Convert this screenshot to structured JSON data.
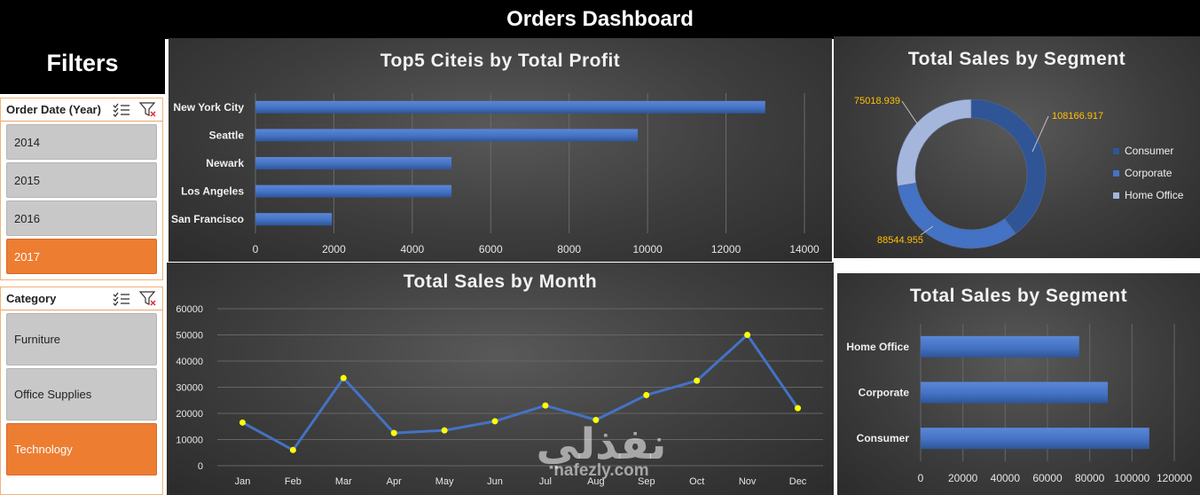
{
  "header": {
    "title": "Orders Dashboard"
  },
  "filters": {
    "title": "Filters",
    "year_slicer": {
      "label": "Order Date (Year)",
      "items": [
        {
          "label": "2014",
          "selected": false
        },
        {
          "label": "2015",
          "selected": false
        },
        {
          "label": "2016",
          "selected": false
        },
        {
          "label": "2017",
          "selected": true
        }
      ]
    },
    "category_slicer": {
      "label": "Category",
      "items": [
        {
          "label": "Furniture",
          "selected": false
        },
        {
          "label": "Office Supplies",
          "selected": false
        },
        {
          "label": "Technology",
          "selected": true
        }
      ]
    }
  },
  "watermark": {
    "arabic": "نفذلي",
    "latin": "nafezly.com"
  },
  "colors": {
    "bar": "#4472c4",
    "consumer": "#2f5597",
    "corporate": "#4472c4",
    "home_office": "#a5b6dd",
    "marker": "#ffff00",
    "selected": "#ed7d31",
    "data_label": "#ffc000"
  },
  "chart_data": [
    {
      "id": "top5",
      "type": "bar",
      "title": "Top5 Citeis by Total Profit",
      "categories": [
        "New York City",
        "Seattle",
        "Newark",
        "Los Angeles",
        "San Francisco"
      ],
      "values": [
        13000,
        9750,
        5000,
        5000,
        1950
      ],
      "xlim": [
        0,
        14000
      ],
      "ticks": [
        "0",
        "2000",
        "4000",
        "6000",
        "8000",
        "10000",
        "12000",
        "14000"
      ],
      "grid": true
    },
    {
      "id": "donut",
      "type": "pie",
      "title": "Total Sales by Segment",
      "categories": [
        "Consumer",
        "Corporate",
        "Home Office"
      ],
      "values": [
        108166.917,
        88544.955,
        75018.939
      ],
      "labels": [
        "108166.917",
        "88544.955",
        "75018.939"
      ],
      "legend": "right"
    },
    {
      "id": "monthly",
      "type": "line",
      "title": "Total Sales by Month",
      "categories": [
        "Jan",
        "Feb",
        "Mar",
        "Apr",
        "May",
        "Jun",
        "Jul",
        "Aug",
        "Sep",
        "Oct",
        "Nov",
        "Dec"
      ],
      "values": [
        16500,
        6000,
        33500,
        12500,
        13500,
        17000,
        23000,
        17500,
        27000,
        32500,
        50000,
        22000
      ],
      "ylim": [
        0,
        60000
      ],
      "ticks": [
        "0",
        "10000",
        "20000",
        "30000",
        "40000",
        "50000",
        "60000"
      ],
      "grid": true
    },
    {
      "id": "segbar",
      "type": "bar",
      "title": "Total Sales by Segment",
      "categories": [
        "Home Office",
        "Corporate",
        "Consumer"
      ],
      "values": [
        75018.939,
        88544.955,
        108166.917
      ],
      "xlim": [
        0,
        120000
      ],
      "ticks": [
        "0",
        "20000",
        "40000",
        "60000",
        "80000",
        "100000",
        "120000"
      ],
      "grid": true
    }
  ]
}
